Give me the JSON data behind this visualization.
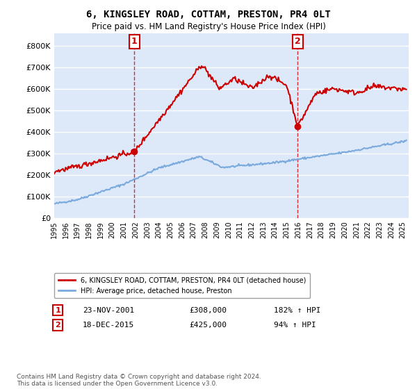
{
  "title": "6, KINGSLEY ROAD, COTTAM, PRESTON, PR4 0LT",
  "subtitle": "Price paid vs. HM Land Registry's House Price Index (HPI)",
  "ylabel_ticks": [
    "£0",
    "£100K",
    "£200K",
    "£300K",
    "£400K",
    "£500K",
    "£600K",
    "£700K",
    "£800K"
  ],
  "ytick_values": [
    0,
    100000,
    200000,
    300000,
    400000,
    500000,
    600000,
    700000,
    800000
  ],
  "ylim": [
    0,
    860000
  ],
  "xlim_start": 1995.0,
  "xlim_end": 2025.5,
  "sale1_x": 2001.9,
  "sale1_y": 308000,
  "sale1_label": "1",
  "sale1_date": "23-NOV-2001",
  "sale1_price": "£308,000",
  "sale1_hpi": "182% ↑ HPI",
  "sale2_x": 2015.96,
  "sale2_y": 425000,
  "sale2_label": "2",
  "sale2_date": "18-DEC-2015",
  "sale2_price": "£425,000",
  "sale2_hpi": "94% ↑ HPI",
  "hpi_color": "#7aaadd",
  "price_color": "#cc0000",
  "vline_color": "#cc0000",
  "background_color": "#dde8f8",
  "legend_label_price": "6, KINGSLEY ROAD, COTTAM, PRESTON, PR4 0LT (detached house)",
  "legend_label_hpi": "HPI: Average price, detached house, Preston",
  "footnote": "Contains HM Land Registry data © Crown copyright and database right 2024.\nThis data is licensed under the Open Government Licence v3.0."
}
